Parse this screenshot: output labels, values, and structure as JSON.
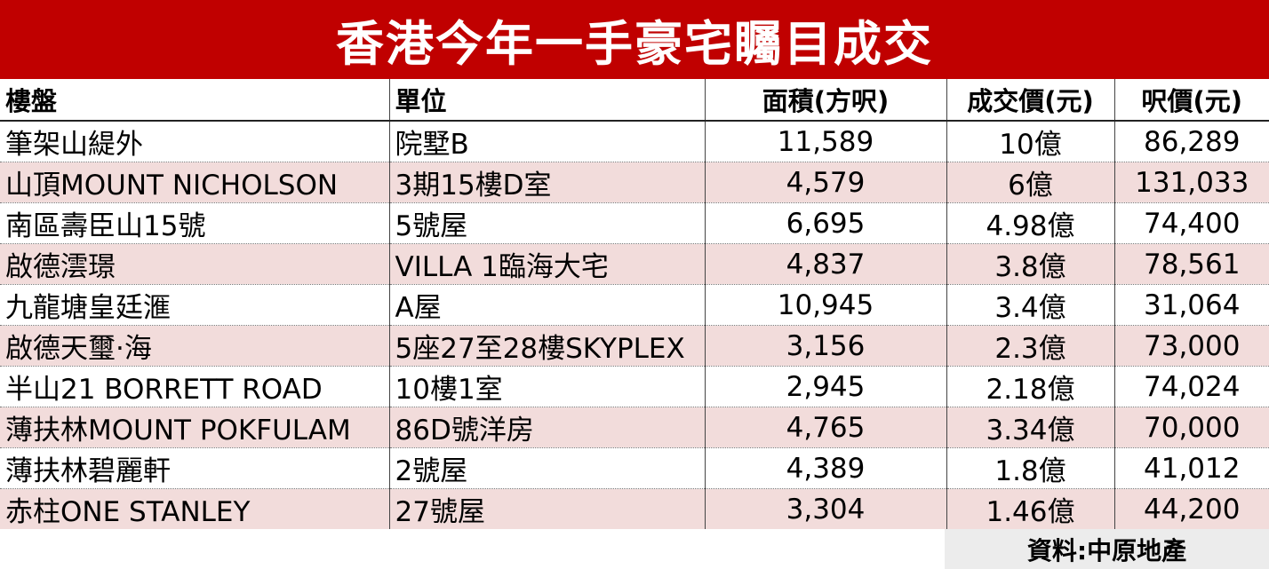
{
  "title": "香港今年一手豪宅矚目成交",
  "chart_data": {
    "type": "table",
    "title": "香港今年一手豪宅矚目成交",
    "columns": [
      "樓盤",
      "單位",
      "面積(方呎)",
      "成交價(元)",
      "呎價(元)"
    ],
    "rows": [
      {
        "estate": "筆架山緹外",
        "unit": "院墅B",
        "area": "11,589",
        "price": "10億",
        "psf": "86,289"
      },
      {
        "estate": "山頂MOUNT NICHOLSON",
        "unit": "3期15樓D室",
        "area": "4,579",
        "price": "6億",
        "psf": "131,033"
      },
      {
        "estate": "南區壽臣山15號",
        "unit": "5號屋",
        "area": "6,695",
        "price": "4.98億",
        "psf": "74,400"
      },
      {
        "estate": "啟德澐璟",
        "unit": "VILLA 1臨海大宅",
        "area": "4,837",
        "price": "3.8億",
        "psf": "78,561"
      },
      {
        "estate": "九龍塘皇廷滙",
        "unit": "A屋",
        "area": "10,945",
        "price": "3.4億",
        "psf": "31,064"
      },
      {
        "estate": "啟德天璽·海",
        "unit": "5座27至28樓SKYPLEX",
        "area": "3,156",
        "price": "2.3億",
        "psf": "73,000"
      },
      {
        "estate": "半山21 BORRETT ROAD",
        "unit": "10樓1室",
        "area": "2,945",
        "price": "2.18億",
        "psf": "74,024"
      },
      {
        "estate": "薄扶林MOUNT POKFULAM",
        "unit": "86D號洋房",
        "area": "4,765",
        "price": "3.34億",
        "psf": "70,000"
      },
      {
        "estate": "薄扶林碧麗軒",
        "unit": "2號屋",
        "area": "4,389",
        "price": "1.8億",
        "psf": "41,012"
      },
      {
        "estate": "赤柱ONE STANLEY",
        "unit": "27號屋",
        "area": "3,304",
        "price": "1.46億",
        "psf": "44,200"
      }
    ]
  },
  "source": "資料:中原地產",
  "colors": {
    "title_bg": "#c00000",
    "title_text": "#ffffff",
    "row_alt_bg": "#f2dcdb",
    "source_bg": "#ececec"
  }
}
